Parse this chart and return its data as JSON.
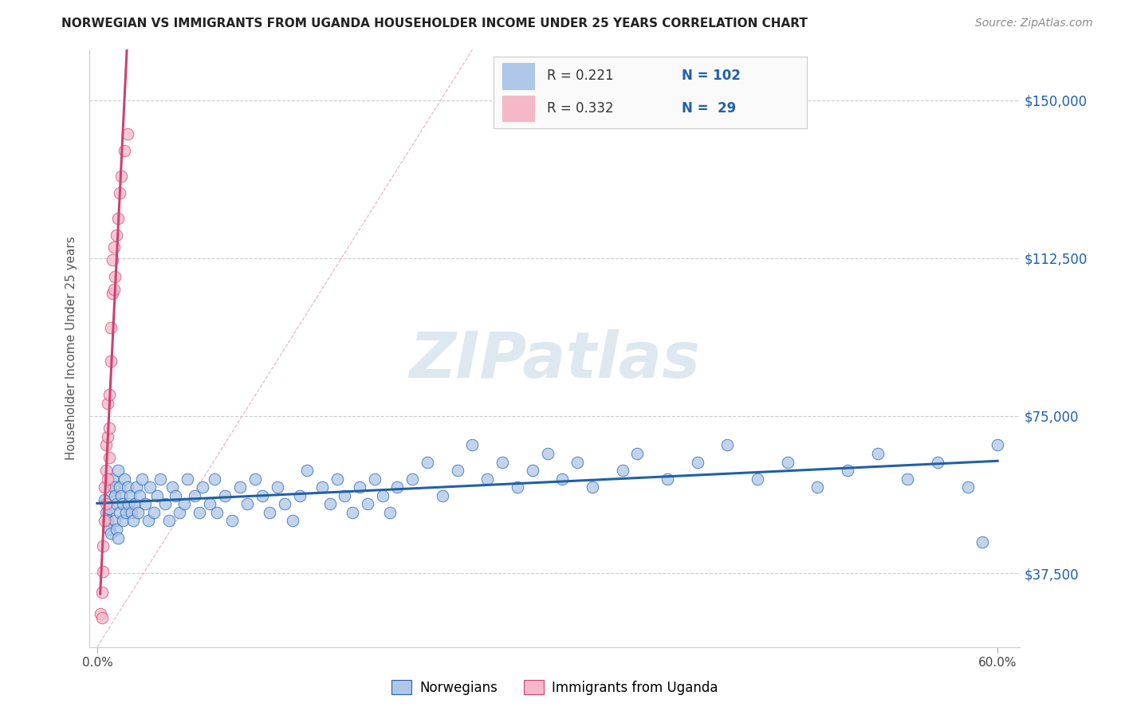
{
  "title": "NORWEGIAN VS IMMIGRANTS FROM UGANDA HOUSEHOLDER INCOME UNDER 25 YEARS CORRELATION CHART",
  "source_text": "Source: ZipAtlas.com",
  "ylabel": "Householder Income Under 25 years",
  "watermark": "ZIPatlas",
  "legend_r1": "0.221",
  "legend_n1": "102",
  "legend_r2": "0.332",
  "legend_n2": "29",
  "xlim": [
    -0.005,
    0.615
  ],
  "ylim": [
    20000,
    162000
  ],
  "yticks": [
    37500,
    75000,
    112500,
    150000
  ],
  "ytick_labels": [
    "$37,500",
    "$75,000",
    "$112,500",
    "$150,000"
  ],
  "xtick_left_label": "0.0%",
  "xtick_right_label": "60.0%",
  "color_norwegian": "#aec6e8",
  "color_uganda": "#f4b8c8",
  "color_line_norwegian": "#2060a8",
  "color_line_uganda": "#d04070",
  "color_diag": "#e8b0c0",
  "color_title": "#222222",
  "color_source": "#888888",
  "color_tick_blue": "#2060a8",
  "color_watermark": "#dde8f0",
  "background_color": "#ffffff",
  "grid_color": "#cccccc",
  "norwegians_x": [
    0.005,
    0.006,
    0.007,
    0.008,
    0.008,
    0.009,
    0.009,
    0.01,
    0.011,
    0.012,
    0.012,
    0.013,
    0.013,
    0.014,
    0.014,
    0.015,
    0.015,
    0.016,
    0.017,
    0.017,
    0.018,
    0.019,
    0.02,
    0.021,
    0.022,
    0.023,
    0.024,
    0.025,
    0.026,
    0.027,
    0.028,
    0.03,
    0.032,
    0.034,
    0.035,
    0.038,
    0.04,
    0.042,
    0.045,
    0.048,
    0.05,
    0.052,
    0.055,
    0.058,
    0.06,
    0.065,
    0.068,
    0.07,
    0.075,
    0.078,
    0.08,
    0.085,
    0.09,
    0.095,
    0.1,
    0.105,
    0.11,
    0.115,
    0.12,
    0.125,
    0.13,
    0.135,
    0.14,
    0.15,
    0.155,
    0.16,
    0.165,
    0.17,
    0.175,
    0.18,
    0.185,
    0.19,
    0.195,
    0.2,
    0.21,
    0.22,
    0.23,
    0.24,
    0.25,
    0.26,
    0.27,
    0.28,
    0.29,
    0.3,
    0.31,
    0.32,
    0.33,
    0.35,
    0.36,
    0.38,
    0.4,
    0.42,
    0.44,
    0.46,
    0.48,
    0.5,
    0.52,
    0.54,
    0.56,
    0.58,
    0.59,
    0.6
  ],
  "norwegians_y": [
    55000,
    52000,
    50000,
    48000,
    53000,
    57000,
    47000,
    60000,
    58000,
    56000,
    50000,
    54000,
    48000,
    62000,
    46000,
    58000,
    52000,
    56000,
    50000,
    54000,
    60000,
    52000,
    58000,
    54000,
    56000,
    52000,
    50000,
    54000,
    58000,
    52000,
    56000,
    60000,
    54000,
    50000,
    58000,
    52000,
    56000,
    60000,
    54000,
    50000,
    58000,
    56000,
    52000,
    54000,
    60000,
    56000,
    52000,
    58000,
    54000,
    60000,
    52000,
    56000,
    50000,
    58000,
    54000,
    60000,
    56000,
    52000,
    58000,
    54000,
    50000,
    56000,
    62000,
    58000,
    54000,
    60000,
    56000,
    52000,
    58000,
    54000,
    60000,
    56000,
    52000,
    58000,
    60000,
    64000,
    56000,
    62000,
    68000,
    60000,
    64000,
    58000,
    62000,
    66000,
    60000,
    64000,
    58000,
    62000,
    66000,
    60000,
    64000,
    68000,
    60000,
    64000,
    58000,
    62000,
    66000,
    60000,
    64000,
    58000,
    45000,
    68000
  ],
  "uganda_x": [
    0.002,
    0.003,
    0.003,
    0.004,
    0.004,
    0.005,
    0.005,
    0.006,
    0.006,
    0.006,
    0.007,
    0.007,
    0.007,
    0.008,
    0.008,
    0.008,
    0.009,
    0.009,
    0.01,
    0.01,
    0.011,
    0.011,
    0.012,
    0.013,
    0.014,
    0.015,
    0.016,
    0.018,
    0.02
  ],
  "uganda_y": [
    28000,
    33000,
    27000,
    38000,
    44000,
    50000,
    58000,
    54000,
    62000,
    68000,
    60000,
    70000,
    78000,
    65000,
    72000,
    80000,
    88000,
    96000,
    104000,
    112000,
    105000,
    115000,
    108000,
    118000,
    122000,
    128000,
    132000,
    138000,
    142000
  ]
}
